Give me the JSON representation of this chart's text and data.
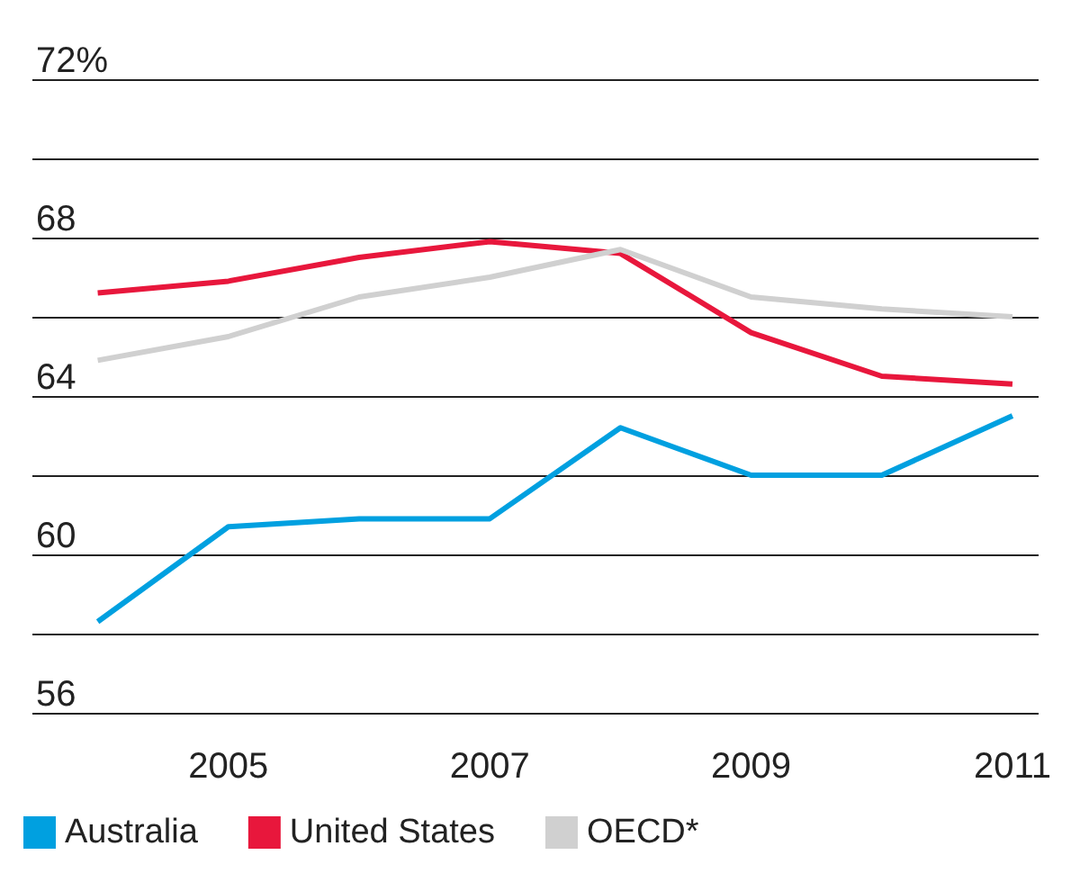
{
  "chart_data": {
    "type": "line",
    "x": [
      2004,
      2005,
      2006,
      2007,
      2008,
      2009,
      2010,
      2011
    ],
    "series": [
      {
        "name": "Australia",
        "color": "#00a0e0",
        "values": [
          58.3,
          60.7,
          60.9,
          60.9,
          63.2,
          62.0,
          62.0,
          63.5
        ]
      },
      {
        "name": "United States",
        "color": "#e8173c",
        "values": [
          66.6,
          66.9,
          67.5,
          67.9,
          67.6,
          65.6,
          64.5,
          64.3
        ]
      },
      {
        "name": "OECD*",
        "color": "#d0d0d0",
        "values": [
          64.9,
          65.5,
          66.5,
          67.0,
          67.7,
          66.5,
          66.2,
          66.0
        ]
      }
    ],
    "xlim": [
      2003.5,
      2011.2
    ],
    "xticks": [
      2005,
      2007,
      2009,
      2011
    ],
    "ylim": [
      56,
      72
    ],
    "yticks": [
      56,
      {
        "value": 58,
        "label": null
      },
      60,
      {
        "value": 62,
        "label": null
      },
      64,
      {
        "value": 66,
        "label": null
      },
      68,
      {
        "value": 70,
        "label": null
      },
      {
        "value": 72,
        "label": "72%"
      }
    ],
    "grid": "y",
    "legend": "bottom left",
    "marker": "none",
    "line_style": "solid"
  }
}
